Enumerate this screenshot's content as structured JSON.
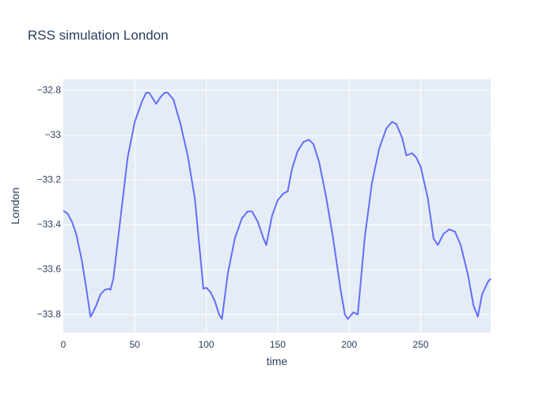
{
  "chart_data": {
    "type": "line",
    "title": "RSS simulation London",
    "x_label": "time",
    "y_label": "London",
    "x": [
      0,
      3,
      6,
      9,
      13,
      16,
      19,
      20,
      23,
      26,
      29,
      32,
      33,
      35,
      40,
      45,
      50,
      55,
      58,
      60,
      63,
      65,
      68,
      71,
      73,
      77,
      82,
      87,
      92,
      98,
      100,
      103,
      106,
      109,
      111,
      115,
      120,
      125,
      129,
      132,
      136,
      140,
      142,
      146,
      150,
      154,
      157,
      160,
      164,
      168,
      172,
      175,
      179,
      184,
      189,
      194,
      197,
      199,
      203,
      206,
      211,
      216,
      221,
      226,
      230,
      233,
      237,
      240,
      244,
      247,
      250,
      255,
      259,
      262,
      266,
      270,
      274,
      278,
      283,
      287,
      290,
      293,
      297,
      299
    ],
    "series": [
      {
        "name": "London",
        "color": "#636efa",
        "values": [
          -33.337,
          -33.35,
          -33.385,
          -33.44,
          -33.56,
          -33.68,
          -33.81,
          -33.8,
          -33.76,
          -33.71,
          -33.69,
          -33.685,
          -33.69,
          -33.64,
          -33.37,
          -33.1,
          -32.94,
          -32.85,
          -32.81,
          -32.81,
          -32.84,
          -32.86,
          -32.83,
          -32.81,
          -32.81,
          -32.84,
          -32.95,
          -33.09,
          -33.28,
          -33.685,
          -33.68,
          -33.7,
          -33.74,
          -33.8,
          -33.82,
          -33.62,
          -33.46,
          -33.37,
          -33.34,
          -33.34,
          -33.385,
          -33.46,
          -33.49,
          -33.36,
          -33.29,
          -33.26,
          -33.25,
          -33.15,
          -33.07,
          -33.03,
          -33.02,
          -33.04,
          -33.12,
          -33.28,
          -33.47,
          -33.69,
          -33.8,
          -33.82,
          -33.79,
          -33.8,
          -33.45,
          -33.21,
          -33.06,
          -32.97,
          -32.94,
          -32.95,
          -33.01,
          -33.09,
          -33.08,
          -33.1,
          -33.14,
          -33.28,
          -33.46,
          -33.49,
          -33.44,
          -33.42,
          -33.43,
          -33.49,
          -33.62,
          -33.76,
          -33.81,
          -33.71,
          -33.655,
          -33.64
        ]
      }
    ],
    "xlim": [
      0,
      299
    ],
    "ylim": [
      -33.881,
      -32.75
    ],
    "xticks": [
      0,
      50,
      100,
      150,
      200,
      250
    ],
    "yticks": [
      {
        "value": -33.8,
        "label": "−33.8"
      },
      {
        "value": -33.6,
        "label": "−33.6"
      },
      {
        "value": -33.4,
        "label": "−33.4"
      },
      {
        "value": -33.2,
        "label": "−33.2"
      },
      {
        "value": -33,
        "label": "−33"
      },
      {
        "value": -32.8,
        "label": "−32.8"
      }
    ],
    "grid": true
  }
}
